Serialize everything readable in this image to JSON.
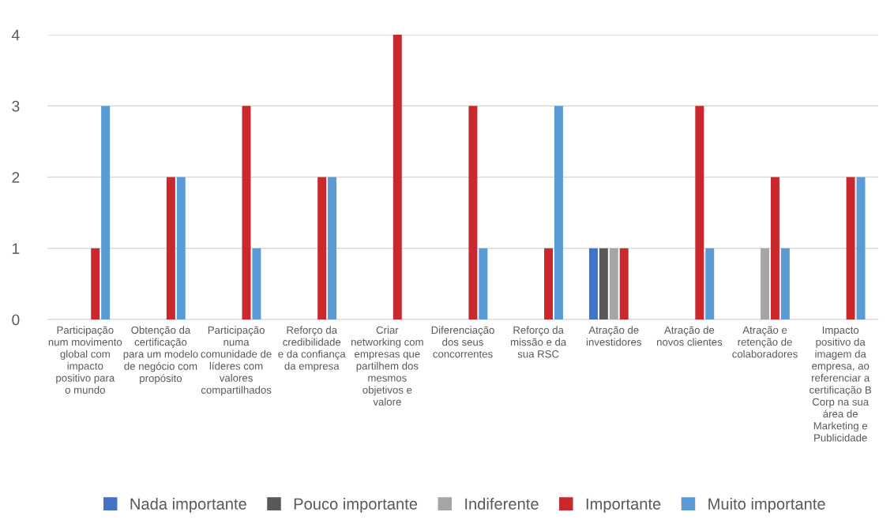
{
  "chart_data": {
    "type": "bar",
    "categories": [
      "Participação num movimento global com impacto positivo para o mundo",
      "Obtenção da certificação para um modelo de negócio com propósito",
      "Participação numa comunidade de líderes com valores compartilhados",
      "Reforço da credibilidade e da confiança da empresa",
      "Criar networking com empresas que partilhem dos mesmos objetivos e valore",
      "Diferenciação dos seus concorrentes",
      "Reforço da missão e da sua RSC",
      "Atração de investidores",
      "Atração de novos clientes",
      "Atração e retenção de colaboradores",
      "Impacto positivo da imagem da empresa, ao referenciar a certificação B Corp na sua área de Marketing e Publicidade"
    ],
    "series": [
      {
        "name": "Nada importante",
        "color": "#4472c4",
        "values": [
          null,
          null,
          null,
          null,
          null,
          null,
          null,
          1,
          null,
          null,
          null
        ]
      },
      {
        "name": "Pouco importante",
        "color": "#595959",
        "values": [
          null,
          null,
          null,
          null,
          null,
          null,
          null,
          1,
          null,
          null,
          null
        ]
      },
      {
        "name": "Indiferente",
        "color": "#a5a5a5",
        "values": [
          null,
          null,
          null,
          null,
          null,
          null,
          null,
          1,
          null,
          1,
          null
        ]
      },
      {
        "name": "Importante",
        "color": "#c9282d",
        "values": [
          1,
          2,
          3,
          2,
          4,
          3,
          1,
          1,
          3,
          2,
          2
        ]
      },
      {
        "name": "Muito importante",
        "color": "#5b9bd5",
        "values": [
          3,
          2,
          1,
          2,
          null,
          1,
          3,
          null,
          1,
          1,
          2
        ]
      }
    ],
    "ylim": [
      0,
      4
    ],
    "yticks": [
      0,
      1,
      2,
      3,
      4
    ],
    "grid": "y",
    "legend": "bottom"
  }
}
